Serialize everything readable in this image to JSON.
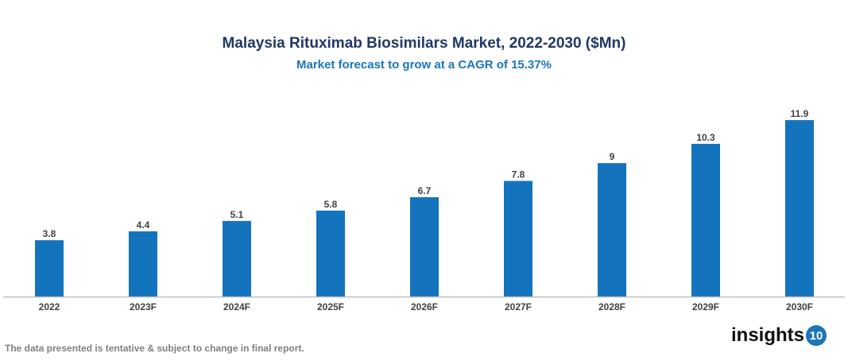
{
  "chart_data": {
    "type": "bar",
    "title": "Malaysia Rituximab Biosimilars Market, 2022-2030 ($Mn)",
    "subtitle": "Market forecast to grow at a CAGR of 15.37%",
    "categories": [
      "2022",
      "2023F",
      "2024F",
      "2025F",
      "2026F",
      "2027F",
      "2028F",
      "2029F",
      "2030F"
    ],
    "values": [
      3.8,
      4.4,
      5.1,
      5.8,
      6.7,
      7.8,
      9,
      10.3,
      11.9
    ],
    "xlabel": "",
    "ylabel": "",
    "ylim": [
      0,
      12
    ],
    "grid": false,
    "bar_color": "#1473bd",
    "data_labels": true
  },
  "footer": {
    "note": "The data presented is tentative & subject to change in final report."
  },
  "logo": {
    "text": "insights",
    "badge": "10"
  }
}
